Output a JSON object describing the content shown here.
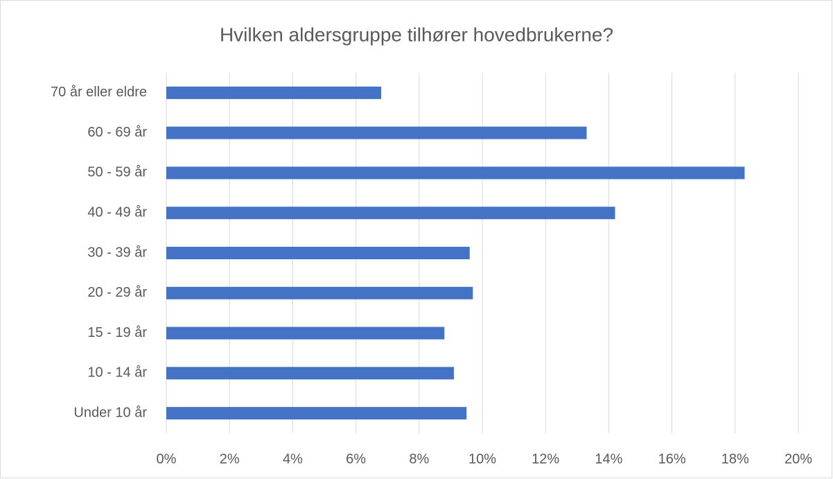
{
  "chart_data": {
    "type": "barh",
    "title": "Hvilken aldersgruppe tilhører hovedbrukerne?",
    "categories": [
      "70 år eller eldre",
      "60 - 69 år",
      "50 - 59 år",
      "40 - 49 år",
      "30 - 39 år",
      "20 - 29 år",
      "15 - 19 år",
      "10 - 14 år",
      "Under 10 år"
    ],
    "values": [
      6.8,
      13.3,
      18.3,
      14.2,
      9.6,
      9.7,
      8.8,
      9.1,
      9.5
    ],
    "color": "#4472c4",
    "xlim": [
      0,
      20
    ],
    "xticks": [
      {
        "value": 0,
        "label": "0%"
      },
      {
        "value": 2,
        "label": "2%"
      },
      {
        "value": 4,
        "label": "4%"
      },
      {
        "value": 6,
        "label": "6%"
      },
      {
        "value": 8,
        "label": "8%"
      },
      {
        "value": 10,
        "label": "10%"
      },
      {
        "value": 12,
        "label": "12%"
      },
      {
        "value": 14,
        "label": "14%"
      },
      {
        "value": 16,
        "label": "16%"
      },
      {
        "value": 18,
        "label": "18%"
      },
      {
        "value": 20,
        "label": "20%"
      }
    ],
    "grid": true
  }
}
